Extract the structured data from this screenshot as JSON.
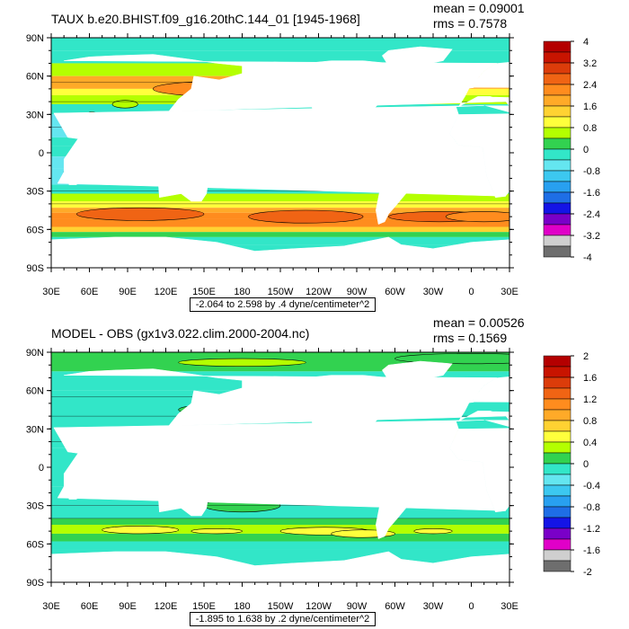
{
  "colors": {
    "scale": [
      "#6e6e6e",
      "#cfcfcf",
      "#e000c8",
      "#7a00c8",
      "#1414e6",
      "#1e6ee6",
      "#28a0f0",
      "#3cc8f0",
      "#64e6f0",
      "#32e6c8",
      "#32d250",
      "#b4ff00",
      "#ffff3c",
      "#ffd232",
      "#ffaa28",
      "#ff8c1e",
      "#f06414",
      "#dc3c0a",
      "#c81400",
      "#b40000"
    ],
    "land": "#ffffff",
    "contour": "#000000"
  },
  "lat_labels": [
    "90N",
    "60N",
    "30N",
    "0",
    "30S",
    "60S",
    "90S"
  ],
  "lon_labels": [
    "30E",
    "60E",
    "90E",
    "120E",
    "150E",
    "180",
    "150W",
    "120W",
    "90W",
    "60W",
    "30W",
    "0",
    "30E"
  ],
  "panels": [
    {
      "id": "top",
      "title": "TAUX b.e20.BHIST.f09_g16.20thC.144_01 [1945-1968]",
      "mean": "mean = 0.09001",
      "rms": "rms = 0.7578",
      "range": "-2.064 to 2.598 by .4 dyne/centimeter^2",
      "colorbar_labels": [
        "4",
        "3.2",
        "2.4",
        "1.6",
        "0.8",
        "0",
        "-0.8",
        "-1.6",
        "-2.4",
        "-3.2",
        "-4"
      ]
    },
    {
      "id": "bottom",
      "title": "MODEL - OBS (gx1v3.022.clim.2000-2004.nc)",
      "mean": "mean = 0.00526",
      "rms": "rms = 0.1569",
      "range": "-1.895 to 1.638 by .2 dyne/centimeter^2",
      "colorbar_labels": [
        "2",
        "1.6",
        "1.2",
        "0.8",
        "0.4",
        "0",
        "-0.4",
        "-0.8",
        "-1.2",
        "-1.6",
        "-2"
      ]
    }
  ]
}
